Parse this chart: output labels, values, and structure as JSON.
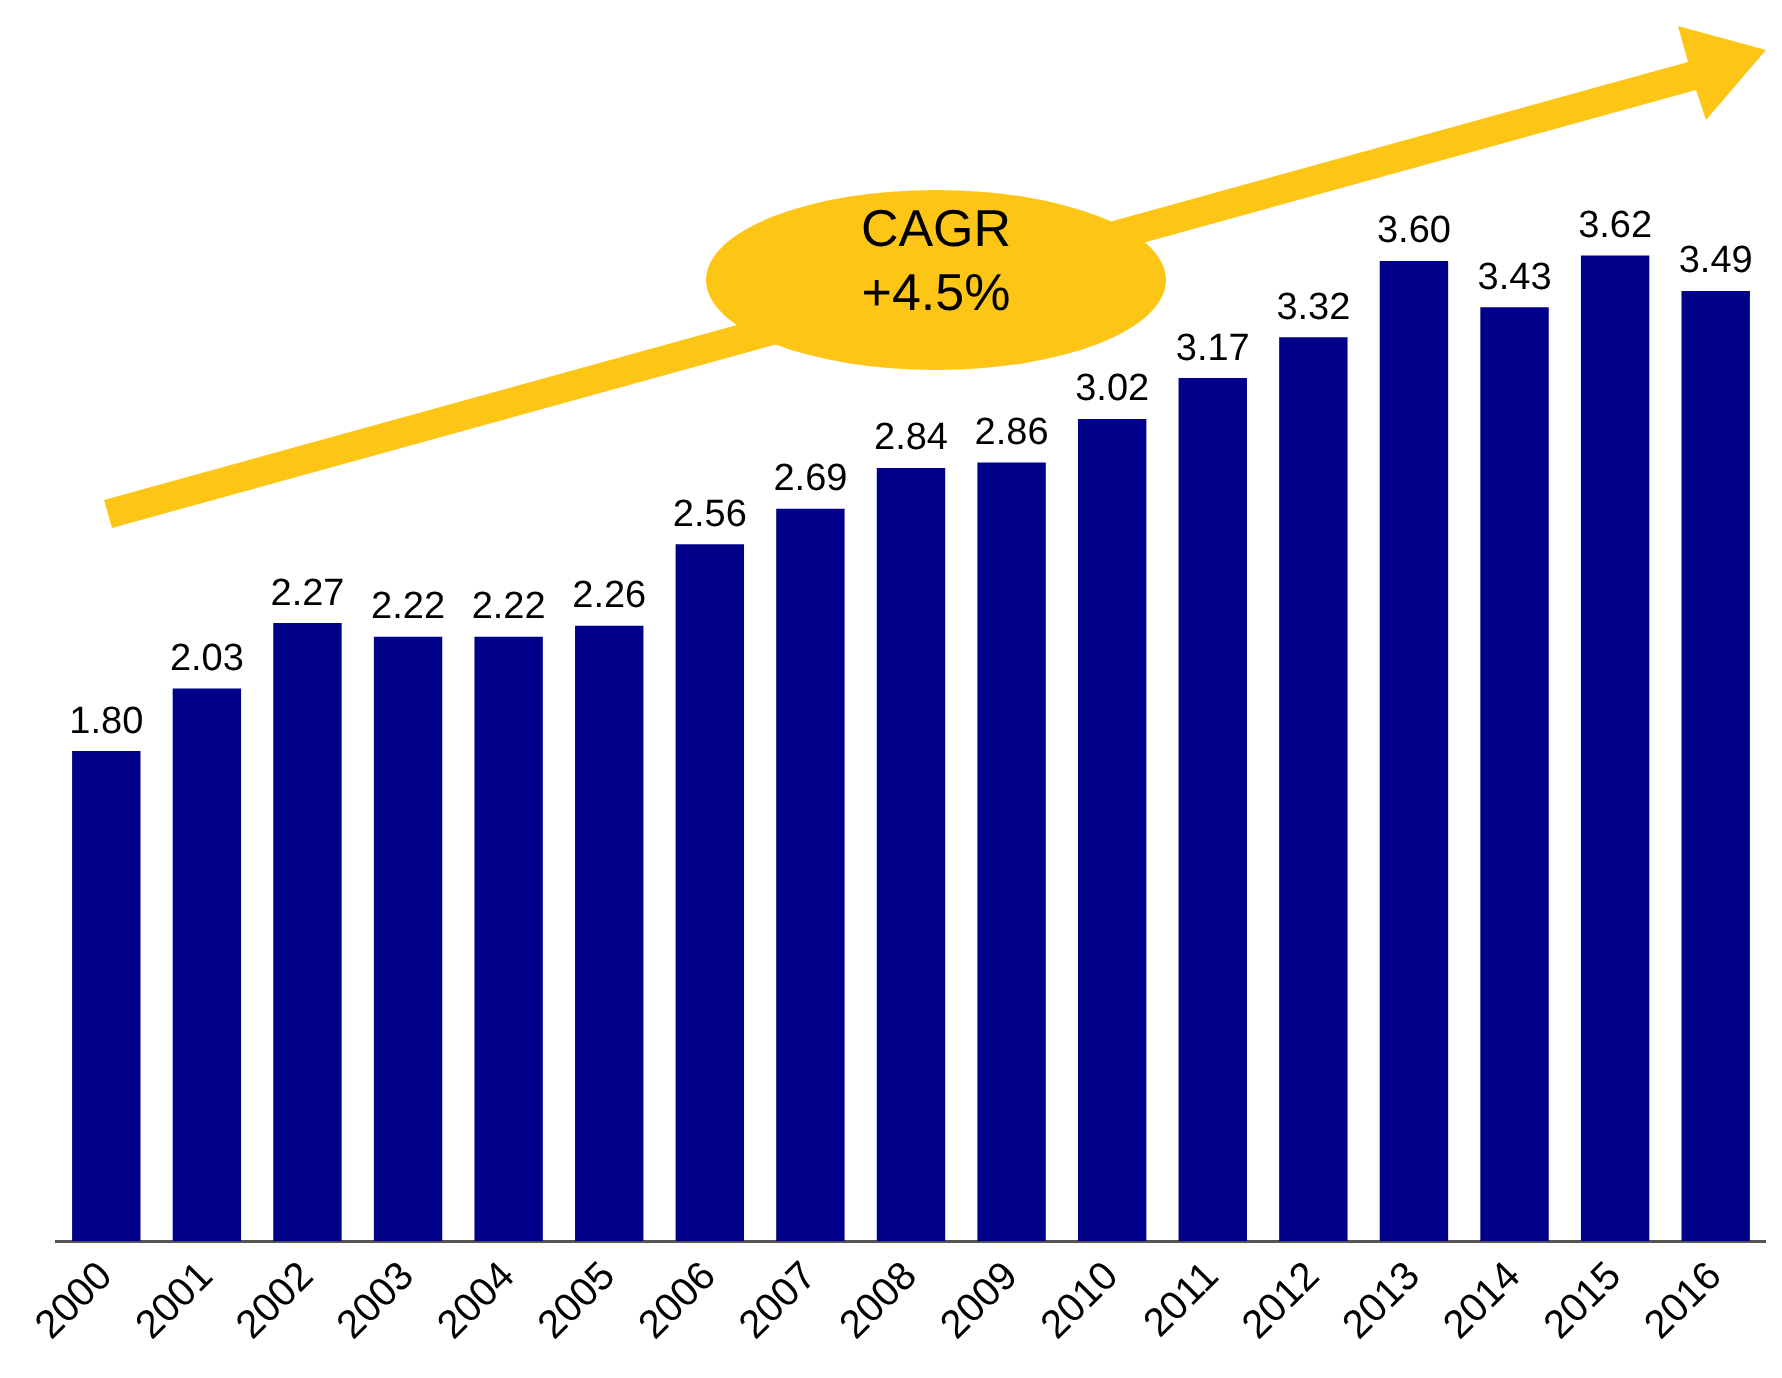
{
  "chart_data": {
    "type": "bar",
    "categories": [
      "2000",
      "2001",
      "2002",
      "2003",
      "2004",
      "2005",
      "2006",
      "2007",
      "2008",
      "2009",
      "2010",
      "2011",
      "2012",
      "2013",
      "2014",
      "2015",
      "2016"
    ],
    "values": [
      1.8,
      2.03,
      2.27,
      2.22,
      2.22,
      2.26,
      2.56,
      2.69,
      2.84,
      2.86,
      3.02,
      3.17,
      3.32,
      3.6,
      3.43,
      3.62,
      3.49
    ],
    "value_labels": [
      "1.80",
      "2.03",
      "2.27",
      "2.22",
      "2.22",
      "2.26",
      "2.56",
      "2.69",
      "2.84",
      "2.86",
      "3.02",
      "3.17",
      "3.32",
      "3.60",
      "3.43",
      "3.62",
      "3.49"
    ],
    "color": "#00008b",
    "tick_labels": "x",
    "grid": false,
    "legend": false,
    "annotations": [
      "CAGR\n+4.5%"
    ]
  }
}
